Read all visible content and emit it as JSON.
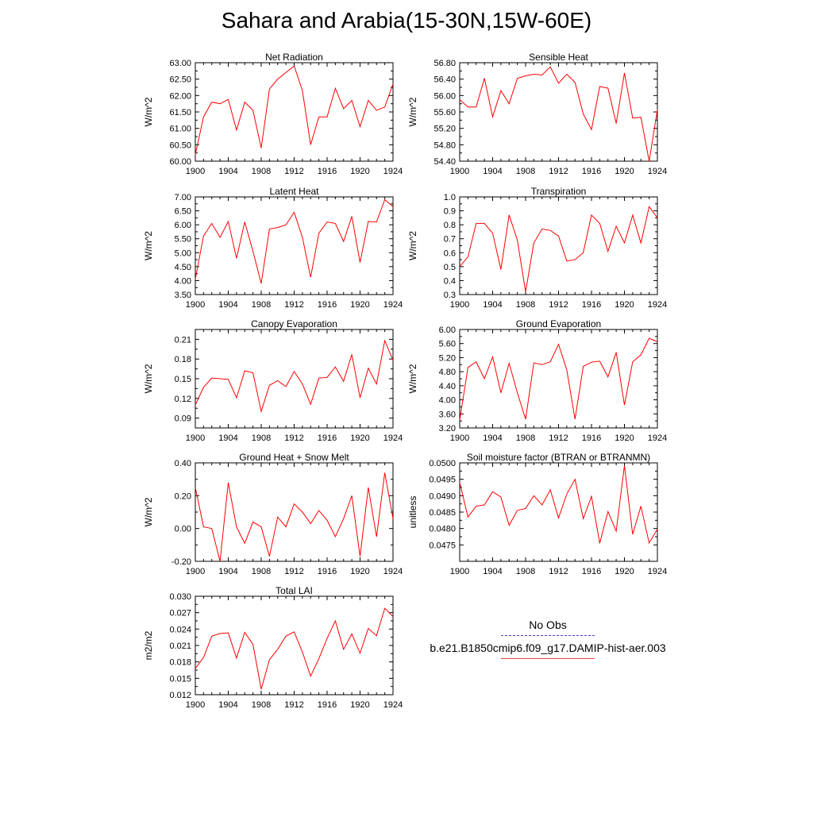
{
  "title": "Sahara and Arabia(15-30N,15W-60E)",
  "legend": {
    "obs_label": "No Obs",
    "obs_color": "#3333aa",
    "model_label": "b.e21.B1850cmip6.f09_g17.DAMIP-hist-aer.003",
    "model_color": "#ff0000"
  },
  "chart_data": [
    {
      "type": "line",
      "title": "Net Radiation",
      "ylabel": "W/m^2",
      "ylim": [
        60.0,
        63.0
      ],
      "yticks": [
        "60.00",
        "60.50",
        "61.00",
        "61.50",
        "62.00",
        "62.50",
        "63.00"
      ],
      "xlim": [
        1900,
        1924
      ],
      "xticks": [
        "1900",
        "1904",
        "1908",
        "1912",
        "1916",
        "1920",
        "1924"
      ],
      "x": [
        1900,
        1901,
        1902,
        1903,
        1904,
        1905,
        1906,
        1907,
        1908,
        1909,
        1910,
        1911,
        1912,
        1913,
        1914,
        1915,
        1916,
        1917,
        1918,
        1919,
        1920,
        1921,
        1922,
        1923,
        1924
      ],
      "series": [
        {
          "values": [
            60.2,
            61.35,
            61.8,
            61.75,
            61.88,
            60.95,
            61.8,
            61.55,
            60.4,
            62.2,
            62.5,
            62.7,
            62.9,
            62.15,
            60.5,
            61.35,
            61.35,
            62.22,
            61.6,
            61.85,
            61.05,
            61.85,
            61.55,
            61.65,
            62.35
          ]
        }
      ]
    },
    {
      "type": "line",
      "title": "Sensible Heat",
      "ylabel": "W/m^2",
      "ylim": [
        54.4,
        56.8
      ],
      "yticks": [
        "54.40",
        "54.80",
        "55.20",
        "55.60",
        "56.00",
        "56.40",
        "56.80"
      ],
      "xlim": [
        1900,
        1924
      ],
      "xticks": [
        "1900",
        "1904",
        "1908",
        "1912",
        "1916",
        "1920",
        "1924"
      ],
      "x": [
        1900,
        1901,
        1902,
        1903,
        1904,
        1905,
        1906,
        1907,
        1908,
        1909,
        1910,
        1911,
        1912,
        1913,
        1914,
        1915,
        1916,
        1917,
        1918,
        1919,
        1920,
        1921,
        1922,
        1923,
        1924
      ],
      "series": [
        {
          "values": [
            55.9,
            55.72,
            55.72,
            56.42,
            55.48,
            56.12,
            55.8,
            56.42,
            56.48,
            56.52,
            56.5,
            56.7,
            56.3,
            56.52,
            56.32,
            55.55,
            55.17,
            56.22,
            56.18,
            55.32,
            56.55,
            55.45,
            55.47,
            54.4,
            55.65
          ]
        }
      ]
    },
    {
      "type": "line",
      "title": "Latent Heat",
      "ylabel": "W/m^2",
      "ylim": [
        3.5,
        7.0
      ],
      "yticks": [
        "3.50",
        "4.00",
        "4.50",
        "5.00",
        "5.50",
        "6.00",
        "6.50",
        "7.00"
      ],
      "xlim": [
        1900,
        1924
      ],
      "xticks": [
        "1900",
        "1904",
        "1908",
        "1912",
        "1916",
        "1920",
        "1924"
      ],
      "x": [
        1900,
        1901,
        1902,
        1903,
        1904,
        1905,
        1906,
        1907,
        1908,
        1909,
        1910,
        1911,
        1912,
        1913,
        1914,
        1915,
        1916,
        1917,
        1918,
        1919,
        1920,
        1921,
        1922,
        1923,
        1924
      ],
      "series": [
        {
          "values": [
            4.05,
            5.6,
            6.05,
            5.55,
            6.12,
            4.8,
            6.1,
            5.05,
            3.9,
            5.85,
            5.9,
            6.0,
            6.45,
            5.55,
            4.12,
            5.7,
            6.1,
            6.05,
            5.4,
            6.3,
            4.65,
            6.12,
            6.1,
            6.9,
            6.65
          ]
        }
      ]
    },
    {
      "type": "line",
      "title": "Transpiration",
      "ylabel": "W/m^2",
      "ylim": [
        0.3,
        1.0
      ],
      "yticks": [
        "0.3",
        "0.4",
        "0.5",
        "0.6",
        "0.7",
        "0.8",
        "0.9",
        "1.0"
      ],
      "xlim": [
        1900,
        1924
      ],
      "xticks": [
        "1900",
        "1904",
        "1908",
        "1912",
        "1916",
        "1920",
        "1924"
      ],
      "x": [
        1900,
        1901,
        1902,
        1903,
        1904,
        1905,
        1906,
        1907,
        1908,
        1909,
        1910,
        1911,
        1912,
        1913,
        1914,
        1915,
        1916,
        1917,
        1918,
        1919,
        1920,
        1921,
        1922,
        1923,
        1924
      ],
      "series": [
        {
          "values": [
            0.5,
            0.57,
            0.81,
            0.81,
            0.74,
            0.48,
            0.87,
            0.69,
            0.32,
            0.67,
            0.77,
            0.76,
            0.72,
            0.54,
            0.55,
            0.6,
            0.87,
            0.81,
            0.61,
            0.79,
            0.67,
            0.87,
            0.67,
            0.93,
            0.85
          ]
        }
      ]
    },
    {
      "type": "line",
      "title": "Canopy Evaporation",
      "ylabel": "W/m^2",
      "ylim": [
        0.075,
        0.225
      ],
      "yticks": [
        "0.09",
        "0.12",
        "0.15",
        "0.18",
        "0.21"
      ],
      "ytick_values": [
        0.09,
        0.12,
        0.15,
        0.18,
        0.21
      ],
      "xlim": [
        1900,
        1924
      ],
      "xticks": [
        "1900",
        "1904",
        "1908",
        "1912",
        "1916",
        "1920",
        "1924"
      ],
      "x": [
        1900,
        1901,
        1902,
        1903,
        1904,
        1905,
        1906,
        1907,
        1908,
        1909,
        1910,
        1911,
        1912,
        1913,
        1914,
        1915,
        1916,
        1917,
        1918,
        1919,
        1920,
        1921,
        1922,
        1923,
        1924
      ],
      "series": [
        {
          "values": [
            0.11,
            0.137,
            0.151,
            0.15,
            0.149,
            0.121,
            0.162,
            0.159,
            0.1,
            0.14,
            0.147,
            0.138,
            0.161,
            0.142,
            0.111,
            0.151,
            0.152,
            0.168,
            0.146,
            0.187,
            0.121,
            0.166,
            0.142,
            0.208,
            0.178
          ]
        }
      ]
    },
    {
      "type": "line",
      "title": "Ground Evaporation",
      "ylabel": "W/m^2",
      "ylim": [
        3.2,
        6.0
      ],
      "yticks": [
        "3.20",
        "3.60",
        "4.00",
        "4.40",
        "4.80",
        "5.20",
        "5.60",
        "6.00"
      ],
      "xlim": [
        1900,
        1924
      ],
      "xticks": [
        "1900",
        "1904",
        "1908",
        "1912",
        "1916",
        "1920",
        "1924"
      ],
      "x": [
        1900,
        1901,
        1902,
        1903,
        1904,
        1905,
        1906,
        1907,
        1908,
        1909,
        1910,
        1911,
        1912,
        1913,
        1914,
        1915,
        1916,
        1917,
        1918,
        1919,
        1920,
        1921,
        1922,
        1923,
        1924
      ],
      "series": [
        {
          "values": [
            3.42,
            4.92,
            5.08,
            4.6,
            5.22,
            4.2,
            5.04,
            4.2,
            3.45,
            5.05,
            5.0,
            5.08,
            5.58,
            4.85,
            3.45,
            4.95,
            5.07,
            5.1,
            4.65,
            5.35,
            3.85,
            5.08,
            5.28,
            5.75,
            5.65
          ]
        }
      ]
    },
    {
      "type": "line",
      "title": "Ground Heat + Snow Melt",
      "ylabel": "W/m^2",
      "ylim": [
        -0.2,
        0.4
      ],
      "yticks": [
        "-0.20",
        "0.00",
        "0.20",
        "0.40"
      ],
      "xlim": [
        1900,
        1924
      ],
      "xticks": [
        "1900",
        "1904",
        "1908",
        "1912",
        "1916",
        "1920",
        "1924"
      ],
      "x": [
        1900,
        1901,
        1902,
        1903,
        1904,
        1905,
        1906,
        1907,
        1908,
        1909,
        1910,
        1911,
        1912,
        1913,
        1914,
        1915,
        1916,
        1917,
        1918,
        1919,
        1920,
        1921,
        1922,
        1923,
        1924
      ],
      "series": [
        {
          "values": [
            0.25,
            0.01,
            0.0,
            -0.2,
            0.28,
            0.01,
            -0.09,
            0.04,
            0.01,
            -0.17,
            0.07,
            0.01,
            0.15,
            0.1,
            0.03,
            0.11,
            0.05,
            -0.05,
            0.06,
            0.2,
            -0.17,
            0.25,
            -0.05,
            0.34,
            0.06
          ]
        }
      ]
    },
    {
      "type": "line",
      "title": "Soil moisture factor (BTRAN or BTRANMN)",
      "ylabel": "unitless",
      "ylim": [
        0.047,
        0.05
      ],
      "yticks": [
        "0.0475",
        "0.0480",
        "0.0485",
        "0.0490",
        "0.0495",
        "0.0500"
      ],
      "ytick_values": [
        0.0475,
        0.048,
        0.0485,
        0.049,
        0.0495,
        0.05
      ],
      "xlim": [
        1900,
        1924
      ],
      "xticks": [
        "1900",
        "1904",
        "1908",
        "1912",
        "1916",
        "1920",
        "1924"
      ],
      "x": [
        1900,
        1901,
        1902,
        1903,
        1904,
        1905,
        1906,
        1907,
        1908,
        1909,
        1910,
        1911,
        1912,
        1913,
        1914,
        1915,
        1916,
        1917,
        1918,
        1919,
        1920,
        1921,
        1922,
        1923,
        1924
      ],
      "series": [
        {
          "values": [
            0.0494,
            0.04835,
            0.04868,
            0.04872,
            0.04912,
            0.04896,
            0.0481,
            0.04855,
            0.04861,
            0.049,
            0.04872,
            0.04918,
            0.04832,
            0.04905,
            0.0495,
            0.0483,
            0.04898,
            0.04755,
            0.04852,
            0.04792,
            0.04992,
            0.04782,
            0.04868,
            0.04756,
            0.04798
          ]
        }
      ]
    },
    {
      "type": "line",
      "title": "Total LAI",
      "ylabel": "m2/m2",
      "ylim": [
        0.012,
        0.03
      ],
      "yticks": [
        "0.012",
        "0.015",
        "0.018",
        "0.021",
        "0.024",
        "0.027",
        "0.030"
      ],
      "xlim": [
        1900,
        1924
      ],
      "xticks": [
        "1900",
        "1904",
        "1908",
        "1912",
        "1916",
        "1920",
        "1924"
      ],
      "x": [
        1900,
        1901,
        1902,
        1903,
        1904,
        1905,
        1906,
        1907,
        1908,
        1909,
        1910,
        1911,
        1912,
        1913,
        1914,
        1915,
        1916,
        1917,
        1918,
        1919,
        1920,
        1921,
        1922,
        1923,
        1924
      ],
      "series": [
        {
          "values": [
            0.0168,
            0.0188,
            0.0227,
            0.0232,
            0.0233,
            0.0187,
            0.0234,
            0.0212,
            0.013,
            0.0184,
            0.0203,
            0.0227,
            0.0235,
            0.0198,
            0.0154,
            0.0186,
            0.0223,
            0.0255,
            0.0203,
            0.0231,
            0.0196,
            0.0241,
            0.0228,
            0.0278,
            0.0263
          ]
        }
      ]
    }
  ]
}
